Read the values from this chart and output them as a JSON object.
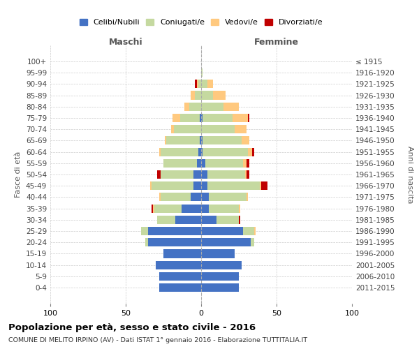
{
  "age_groups": [
    "0-4",
    "5-9",
    "10-14",
    "15-19",
    "20-24",
    "25-29",
    "30-34",
    "35-39",
    "40-44",
    "45-49",
    "50-54",
    "55-59",
    "60-64",
    "65-69",
    "70-74",
    "75-79",
    "80-84",
    "85-89",
    "90-94",
    "95-99",
    "100+"
  ],
  "birth_years": [
    "2011-2015",
    "2006-2010",
    "2001-2005",
    "1996-2000",
    "1991-1995",
    "1986-1990",
    "1981-1985",
    "1976-1980",
    "1971-1975",
    "1966-1970",
    "1961-1965",
    "1956-1960",
    "1951-1955",
    "1946-1950",
    "1941-1945",
    "1936-1940",
    "1931-1935",
    "1926-1930",
    "1921-1925",
    "1916-1920",
    "≤ 1915"
  ],
  "colors": {
    "celibe": "#4472C4",
    "coniugato": "#c5d9a0",
    "vedovo": "#ffc97f",
    "divorziato": "#c00000"
  },
  "maschi": {
    "celibe": [
      28,
      28,
      30,
      25,
      35,
      35,
      17,
      13,
      7,
      5,
      5,
      3,
      2,
      1,
      0,
      1,
      0,
      0,
      0,
      0,
      0
    ],
    "coniugato": [
      0,
      0,
      0,
      0,
      2,
      5,
      12,
      18,
      20,
      28,
      22,
      22,
      25,
      22,
      18,
      13,
      8,
      4,
      2,
      0,
      0
    ],
    "vedovo": [
      0,
      0,
      0,
      0,
      0,
      0,
      0,
      1,
      1,
      1,
      0,
      0,
      1,
      1,
      2,
      5,
      3,
      3,
      1,
      0,
      0
    ],
    "divorziato": [
      0,
      0,
      0,
      0,
      0,
      0,
      0,
      1,
      0,
      0,
      2,
      0,
      0,
      0,
      0,
      0,
      0,
      0,
      1,
      0,
      0
    ]
  },
  "femmine": {
    "nubile": [
      25,
      25,
      27,
      22,
      33,
      28,
      10,
      5,
      5,
      4,
      4,
      3,
      1,
      1,
      0,
      1,
      0,
      0,
      0,
      0,
      0
    ],
    "coniugata": [
      0,
      0,
      0,
      0,
      2,
      7,
      15,
      20,
      25,
      35,
      25,
      25,
      30,
      26,
      22,
      20,
      15,
      8,
      4,
      1,
      0
    ],
    "vedova": [
      0,
      0,
      0,
      0,
      0,
      1,
      0,
      1,
      1,
      1,
      1,
      2,
      3,
      5,
      8,
      10,
      10,
      8,
      4,
      0,
      0
    ],
    "divorziata": [
      0,
      0,
      0,
      0,
      0,
      0,
      1,
      0,
      0,
      4,
      2,
      2,
      1,
      0,
      0,
      1,
      0,
      0,
      0,
      0,
      0
    ]
  },
  "xlim": 100,
  "title_bold": "Popolazione per età, sesso e stato civile - 2016",
  "subtitle": "COMUNE DI MELITO IRPINO (AV) - Dati ISTAT 1° gennaio 2016 - Elaborazione TUTTITALIA.IT",
  "ylabel_left": "Fasce di età",
  "ylabel_right": "Anni di nascita",
  "xlabel_left": "Maschi",
  "xlabel_right": "Femmine",
  "legend_labels": [
    "Celibi/Nubili",
    "Coniugati/e",
    "Vedovi/e",
    "Divorziati/e"
  ],
  "legend_colors": [
    "#4472C4",
    "#c5d9a0",
    "#ffc97f",
    "#c00000"
  ]
}
